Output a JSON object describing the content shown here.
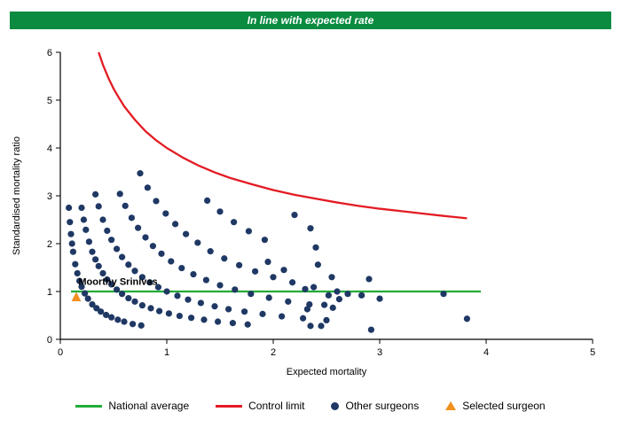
{
  "banner": {
    "text": "In line with expected rate",
    "bg": "#0a8b40"
  },
  "chart_data": {
    "type": "scatter",
    "title": "",
    "xlabel": "Expected mortality",
    "ylabel": "Standardised mortality ratio",
    "xlim": [
      0,
      5
    ],
    "ylim": [
      0,
      6
    ],
    "x_ticks": [
      0,
      1,
      2,
      3,
      4,
      5
    ],
    "y_ticks": [
      0,
      1,
      2,
      3,
      4,
      5,
      6
    ],
    "grid": "off",
    "legend_position": "bottom",
    "national_average": {
      "y": 1,
      "x_start": 0.1,
      "x_end": 3.95,
      "color": "#22ac38"
    },
    "control_limit": {
      "color": "#e31b23",
      "points": [
        [
          0.36,
          6.0
        ],
        [
          0.4,
          5.74
        ],
        [
          0.45,
          5.47
        ],
        [
          0.5,
          5.24
        ],
        [
          0.55,
          5.05
        ],
        [
          0.6,
          4.87
        ],
        [
          0.7,
          4.59
        ],
        [
          0.8,
          4.35
        ],
        [
          0.9,
          4.16
        ],
        [
          1.0,
          4.0
        ],
        [
          1.15,
          3.8
        ],
        [
          1.3,
          3.63
        ],
        [
          1.45,
          3.49
        ],
        [
          1.6,
          3.37
        ],
        [
          1.8,
          3.24
        ],
        [
          2.0,
          3.12
        ],
        [
          2.2,
          3.02
        ],
        [
          2.4,
          2.94
        ],
        [
          2.6,
          2.86
        ],
        [
          2.8,
          2.79
        ],
        [
          3.0,
          2.73
        ],
        [
          3.2,
          2.68
        ],
        [
          3.4,
          2.63
        ],
        [
          3.6,
          2.58
        ],
        [
          3.82,
          2.53
        ]
      ]
    },
    "other_surgeons": {
      "color": "#1f3864",
      "points": [
        [
          0.08,
          2.75
        ],
        [
          0.09,
          2.45
        ],
        [
          0.1,
          2.2
        ],
        [
          0.11,
          2.0
        ],
        [
          0.12,
          1.83
        ],
        [
          0.14,
          1.57
        ],
        [
          0.16,
          1.38
        ],
        [
          0.18,
          1.22
        ],
        [
          0.2,
          1.1
        ],
        [
          0.23,
          0.96
        ],
        [
          0.26,
          0.85
        ],
        [
          0.3,
          0.73
        ],
        [
          0.34,
          0.65
        ],
        [
          0.38,
          0.58
        ],
        [
          0.43,
          0.51
        ],
        [
          0.48,
          0.46
        ],
        [
          0.54,
          0.41
        ],
        [
          0.6,
          0.37
        ],
        [
          0.68,
          0.32
        ],
        [
          0.76,
          0.29
        ],
        [
          0.2,
          2.75
        ],
        [
          0.22,
          2.5
        ],
        [
          0.24,
          2.29
        ],
        [
          0.27,
          2.04
        ],
        [
          0.3,
          1.83
        ],
        [
          0.33,
          1.67
        ],
        [
          0.36,
          1.53
        ],
        [
          0.4,
          1.38
        ],
        [
          0.44,
          1.25
        ],
        [
          0.48,
          1.15
        ],
        [
          0.53,
          1.04
        ],
        [
          0.58,
          0.95
        ],
        [
          0.64,
          0.86
        ],
        [
          0.7,
          0.79
        ],
        [
          0.77,
          0.71
        ],
        [
          0.85,
          0.65
        ],
        [
          0.93,
          0.59
        ],
        [
          1.02,
          0.54
        ],
        [
          1.12,
          0.49
        ],
        [
          1.23,
          0.45
        ],
        [
          1.35,
          0.41
        ],
        [
          1.48,
          0.37
        ],
        [
          1.62,
          0.34
        ],
        [
          1.76,
          0.31
        ],
        [
          0.33,
          3.03
        ],
        [
          0.36,
          2.78
        ],
        [
          0.4,
          2.5
        ],
        [
          0.44,
          2.27
        ],
        [
          0.48,
          2.08
        ],
        [
          0.53,
          1.89
        ],
        [
          0.58,
          1.72
        ],
        [
          0.64,
          1.56
        ],
        [
          0.7,
          1.43
        ],
        [
          0.77,
          1.3
        ],
        [
          0.84,
          1.19
        ],
        [
          0.92,
          1.09
        ],
        [
          1.0,
          1.0
        ],
        [
          1.1,
          0.91
        ],
        [
          1.2,
          0.83
        ],
        [
          1.32,
          0.76
        ],
        [
          1.45,
          0.69
        ],
        [
          1.58,
          0.63
        ],
        [
          1.73,
          0.58
        ],
        [
          1.9,
          0.53
        ],
        [
          2.08,
          0.48
        ],
        [
          2.28,
          0.44
        ],
        [
          2.5,
          0.4
        ],
        [
          0.56,
          3.04
        ],
        [
          0.61,
          2.79
        ],
        [
          0.67,
          2.54
        ],
        [
          0.73,
          2.33
        ],
        [
          0.8,
          2.13
        ],
        [
          0.87,
          1.95
        ],
        [
          0.95,
          1.79
        ],
        [
          1.04,
          1.63
        ],
        [
          1.14,
          1.49
        ],
        [
          1.25,
          1.36
        ],
        [
          1.37,
          1.24
        ],
        [
          1.5,
          1.13
        ],
        [
          1.64,
          1.04
        ],
        [
          1.79,
          0.95
        ],
        [
          1.96,
          0.87
        ],
        [
          2.14,
          0.79
        ],
        [
          2.34,
          0.73
        ],
        [
          2.56,
          0.66
        ],
        [
          0.75,
          3.47
        ],
        [
          0.82,
          3.17
        ],
        [
          0.9,
          2.89
        ],
        [
          0.99,
          2.63
        ],
        [
          1.08,
          2.41
        ],
        [
          1.18,
          2.2
        ],
        [
          1.29,
          2.02
        ],
        [
          1.41,
          1.84
        ],
        [
          1.54,
          1.69
        ],
        [
          1.68,
          1.55
        ],
        [
          1.83,
          1.42
        ],
        [
          2.0,
          1.3
        ],
        [
          2.18,
          1.19
        ],
        [
          2.38,
          1.09
        ],
        [
          2.6,
          1.0
        ],
        [
          2.83,
          0.92
        ],
        [
          1.38,
          2.9
        ],
        [
          1.5,
          2.67
        ],
        [
          1.63,
          2.45
        ],
        [
          1.77,
          2.26
        ],
        [
          1.92,
          2.08
        ],
        [
          2.2,
          2.6
        ],
        [
          2.35,
          2.32
        ],
        [
          2.4,
          1.92
        ],
        [
          2.42,
          1.56
        ],
        [
          2.55,
          1.3
        ],
        [
          2.62,
          0.84
        ],
        [
          2.7,
          0.95
        ],
        [
          2.9,
          1.26
        ],
        [
          3.0,
          0.85
        ],
        [
          2.92,
          0.2
        ],
        [
          3.6,
          0.95
        ],
        [
          3.82,
          0.43
        ],
        [
          2.35,
          0.28
        ],
        [
          2.45,
          0.28
        ],
        [
          2.32,
          0.63
        ],
        [
          2.52,
          0.92
        ],
        [
          2.1,
          1.45
        ],
        [
          1.95,
          1.62
        ],
        [
          2.3,
          1.05
        ],
        [
          2.48,
          0.72
        ]
      ]
    },
    "selected_surgeon": {
      "label": "Moorthy Srinivas",
      "x": 0.15,
      "y": 0.88,
      "color": "#f0901e",
      "label_x": 0.17,
      "label_y": 1.14
    }
  },
  "legend": {
    "items": [
      {
        "label": "National average",
        "marker": "line",
        "color": "#22ac38"
      },
      {
        "label": "Control limit",
        "marker": "line",
        "color": "#e31b23"
      },
      {
        "label": "Other surgeons",
        "marker": "dot",
        "color": "#1f3864"
      },
      {
        "label": "Selected surgeon",
        "marker": "triangle",
        "color": "#f0901e"
      }
    ]
  }
}
